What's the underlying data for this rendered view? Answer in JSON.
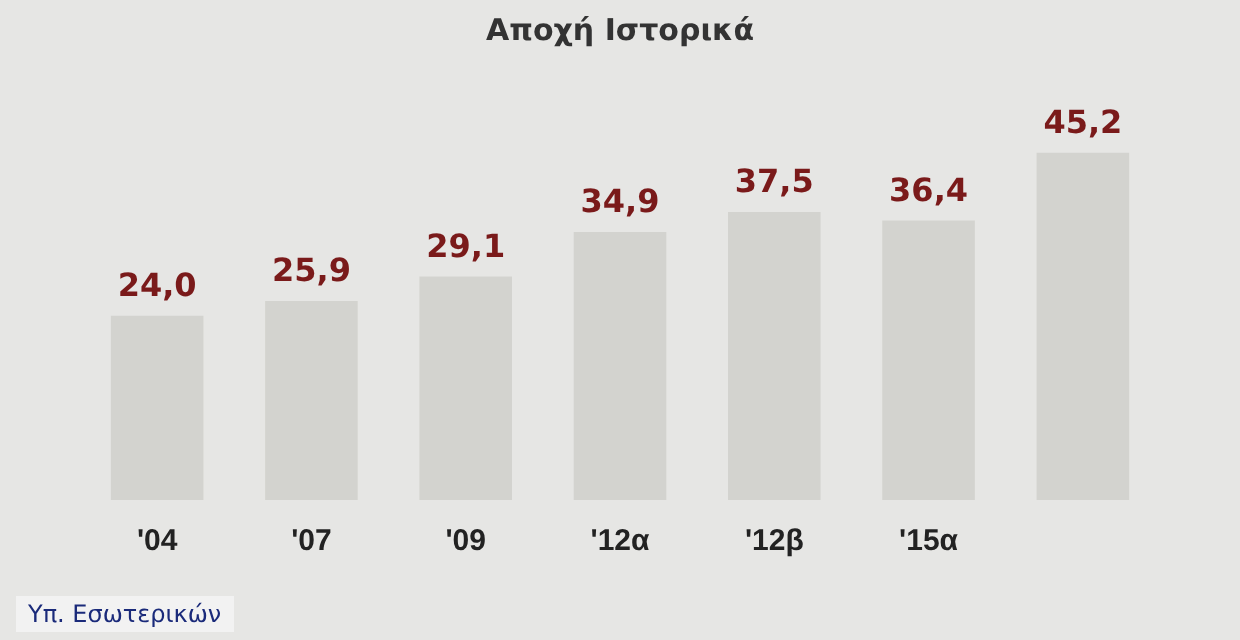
{
  "chart_data": {
    "type": "bar",
    "title": "Αποχή Ιστορικά",
    "categories": [
      "'04",
      "'07",
      "'09",
      "'12α",
      "'12β",
      "'15α",
      null
    ],
    "values": [
      24.0,
      25.9,
      29.1,
      34.9,
      37.5,
      36.4,
      45.2
    ],
    "value_labels": [
      "24,0",
      "25,9",
      "29,1",
      "34,9",
      "37,5",
      "36,4",
      "45,2"
    ],
    "color": "#d3d3cf",
    "tick_labels": "x",
    "grid": false,
    "legend": false,
    "annotations": [
      "Υπ. Εσωτερικών"
    ]
  }
}
